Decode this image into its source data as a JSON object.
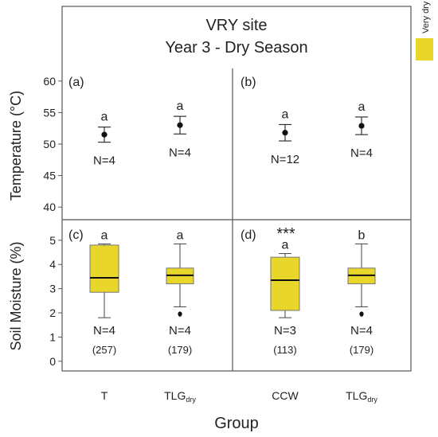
{
  "title": {
    "line1": "VRY site",
    "line2": "Year 3 - Dry Season"
  },
  "legend": {
    "label": "Very dry",
    "color": "#e8d62a"
  },
  "axes": {
    "xlabel": "Group",
    "temp_ylabel": "Temperature (°C)",
    "soil_ylabel": "Soil Moisture (%)",
    "temp_ticks": [
      "40",
      "45",
      "50",
      "55",
      "60"
    ],
    "soil_ticks": [
      "0",
      "1",
      "2",
      "3",
      "4",
      "5"
    ],
    "categories": [
      {
        "main": "T",
        "sub": ""
      },
      {
        "main": "TLG",
        "sub": "dry"
      },
      {
        "main": "CCW",
        "sub": ""
      },
      {
        "main": "TLG",
        "sub": "dry"
      }
    ]
  },
  "panels": {
    "a": {
      "tag": "(a)"
    },
    "b": {
      "tag": "(b)"
    },
    "c": {
      "tag": "(c)"
    },
    "d": {
      "tag": "(d)",
      "significance": "***"
    }
  },
  "chart_data": [
    {
      "type": "scatter",
      "panel": "a",
      "ylabel": "Temperature (°C)",
      "ylim": [
        38,
        62
      ],
      "categories": [
        "T",
        "TLGdry"
      ],
      "series": [
        {
          "mean": [
            51.5,
            53.0
          ],
          "lower": [
            50.3,
            51.6
          ],
          "upper": [
            52.7,
            54.4
          ],
          "letters": [
            "a",
            "a"
          ],
          "n_labels": [
            "N=4",
            "N=4"
          ]
        }
      ]
    },
    {
      "type": "scatter",
      "panel": "b",
      "ylabel": "Temperature (°C)",
      "ylim": [
        38,
        62
      ],
      "categories": [
        "CCW",
        "TLGdry"
      ],
      "series": [
        {
          "mean": [
            51.8,
            52.9
          ],
          "lower": [
            50.5,
            51.5
          ],
          "upper": [
            53.1,
            54.3
          ],
          "letters": [
            "a",
            "a"
          ],
          "n_labels": [
            "N=12",
            "N=4"
          ]
        }
      ]
    },
    {
      "type": "box",
      "panel": "c",
      "ylabel": "Soil Moisture (%)",
      "ylim": [
        -0.4,
        5.85
      ],
      "categories": [
        "T",
        "TLGdry"
      ],
      "boxes": [
        {
          "min": 1.8,
          "q1": 2.85,
          "median": 3.45,
          "q3": 4.8,
          "max": 4.85,
          "outliers": [],
          "letter": "a",
          "n_label": "N=4",
          "count_label": "(257)"
        },
        {
          "min": 2.25,
          "q1": 3.2,
          "median": 3.55,
          "q3": 3.85,
          "max": 4.85,
          "outliers": [
            1.95
          ],
          "letter": "a",
          "n_label": "N=4",
          "count_label": "(179)"
        }
      ]
    },
    {
      "type": "box",
      "panel": "d",
      "ylabel": "Soil Moisture (%)",
      "ylim": [
        -0.4,
        5.85
      ],
      "categories": [
        "CCW",
        "TLGdry"
      ],
      "boxes": [
        {
          "min": 1.8,
          "q1": 2.1,
          "median": 3.35,
          "q3": 4.3,
          "max": 4.45,
          "outliers": [],
          "letter": "a",
          "n_label": "N=3",
          "count_label": "(113)"
        },
        {
          "min": 2.25,
          "q1": 3.2,
          "median": 3.55,
          "q3": 3.85,
          "max": 4.85,
          "outliers": [
            1.95
          ],
          "letter": "b",
          "n_label": "N=4",
          "count_label": "(179)"
        }
      ]
    }
  ]
}
